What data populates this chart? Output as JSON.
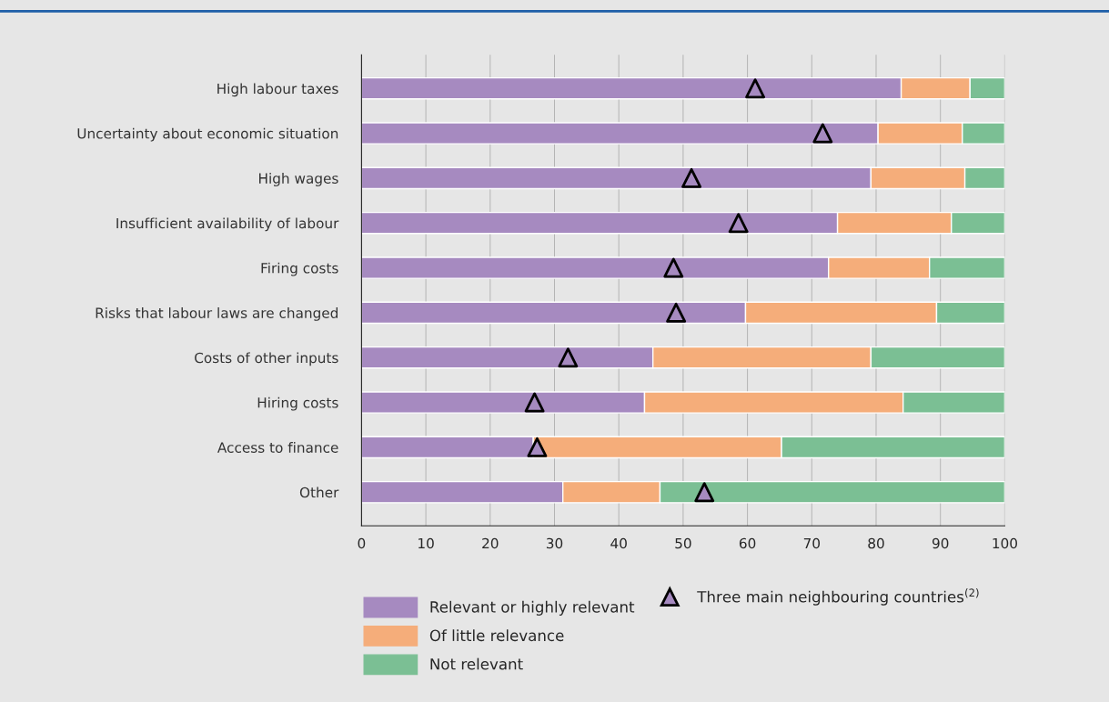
{
  "chart_data": {
    "type": "bar",
    "orientation": "horizontal",
    "stacked": true,
    "categories": [
      "High labour taxes",
      "Uncertainty about economic situation",
      "High wages",
      "Insufficient availability of labour",
      "Firing costs",
      "Risks that labour laws are changed",
      "Costs of other inputs",
      "Hiring costs",
      "Access to finance",
      "Other"
    ],
    "series": [
      {
        "name": "Relevant or highly relevant",
        "color": "#a68ac0",
        "values": [
          83.9,
          80.3,
          79.2,
          74.0,
          72.6,
          59.7,
          45.3,
          44.0,
          26.7,
          31.3
        ]
      },
      {
        "name": "Of little relevance",
        "color": "#f5ad7a",
        "values": [
          10.7,
          13.1,
          14.6,
          17.7,
          15.7,
          29.7,
          33.9,
          40.2,
          38.6,
          15.1
        ]
      },
      {
        "name": "Not relevant",
        "color": "#7bbf94",
        "values": [
          5.4,
          6.6,
          6.2,
          8.3,
          11.7,
          10.6,
          20.8,
          15.8,
          34.7,
          53.6
        ]
      },
      {
        "name": "Three main neighbouring countries$^{(2)}$",
        "type": "scatter",
        "marker": "triangle",
        "color": "#a68ac0",
        "values": [
          61.2,
          71.7,
          51.3,
          58.6,
          48.5,
          48.9,
          32.1,
          26.9,
          27.3,
          53.3
        ]
      }
    ],
    "xlim": [
      0,
      100
    ],
    "xticks": [
      0,
      10,
      20,
      30,
      40,
      50,
      60,
      70,
      80,
      90,
      100
    ],
    "grid": "x",
    "legend": "bottom"
  }
}
